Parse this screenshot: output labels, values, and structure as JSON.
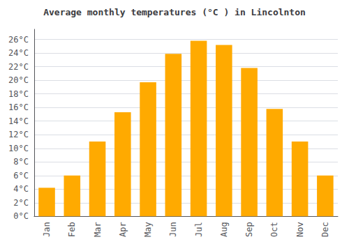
{
  "chart_data": {
    "type": "bar",
    "title": "Average monthly temperatures (°C ) in Lincolnton",
    "categories": [
      "Jan",
      "Feb",
      "Mar",
      "Apr",
      "May",
      "Jun",
      "Jul",
      "Aug",
      "Sep",
      "Oct",
      "Nov",
      "Dec"
    ],
    "values": [
      4.2,
      6.0,
      11.0,
      15.3,
      19.7,
      23.9,
      25.8,
      25.2,
      21.8,
      15.8,
      11.0,
      6.0
    ],
    "color": "#FFAA00",
    "ylim": [
      0,
      27.5
    ],
    "yticks": [
      {
        "value": 0,
        "label": "0°C"
      },
      {
        "value": 2,
        "label": "2°C"
      },
      {
        "value": 4,
        "label": "4°C"
      },
      {
        "value": 6,
        "label": "6°C"
      },
      {
        "value": 8,
        "label": "8°C"
      },
      {
        "value": 10,
        "label": "10°C"
      },
      {
        "value": 12,
        "label": "12°C"
      },
      {
        "value": 14,
        "label": "14°C"
      },
      {
        "value": 16,
        "label": "16°C"
      },
      {
        "value": 18,
        "label": "18°C"
      },
      {
        "value": 20,
        "label": "20°C"
      },
      {
        "value": 22,
        "label": "22°C"
      },
      {
        "value": 24,
        "label": "24°C"
      },
      {
        "value": 26,
        "label": "26°C"
      }
    ],
    "grid": true
  }
}
